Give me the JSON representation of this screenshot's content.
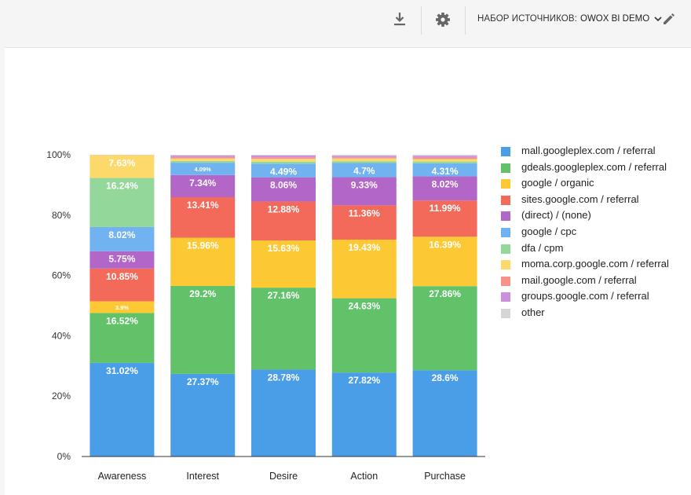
{
  "toolbar": {
    "download_icon": "download-icon",
    "settings_icon": "gear-icon",
    "source_set_label": "НАБОР ИСТОЧНИКОВ:",
    "source_set_value": "OWOX BI DEMO",
    "dropdown_icon": "chevron-down-icon",
    "edit_icon": "pencil-icon"
  },
  "chart_data": {
    "type": "bar",
    "stacked": true,
    "normalized_percent": true,
    "categories": [
      "Awareness",
      "Interest",
      "Desire",
      "Action",
      "Purchase"
    ],
    "y_ticks": [
      "0%",
      "20%",
      "40%",
      "60%",
      "80%",
      "100%"
    ],
    "ylim": [
      0,
      100
    ],
    "legend_position": "right",
    "series": [
      {
        "name": "mall.googleplex.com / referral",
        "color": "#4a9ee8",
        "values": [
          31.02,
          27.37,
          28.78,
          27.82,
          28.6
        ],
        "labels": [
          "31.02%",
          "27.37%",
          "28.78%",
          "27.82%",
          "28.6%"
        ]
      },
      {
        "name": "gdeals.googleplex.com / referral",
        "color": "#62c26a",
        "values": [
          16.52,
          29.2,
          27.16,
          24.63,
          27.86
        ],
        "labels": [
          "16.52%",
          "29.2%",
          "27.16%",
          "24.63%",
          "27.86%"
        ]
      },
      {
        "name": "google / organic",
        "color": "#fcc934",
        "values": [
          3.9,
          15.96,
          15.63,
          19.43,
          16.39
        ],
        "labels": [
          "3.9%",
          "15.96%",
          "15.63%",
          "19.43%",
          "16.39%"
        ]
      },
      {
        "name": "sites.google.com / referral",
        "color": "#f36a5a",
        "values": [
          10.85,
          13.41,
          12.88,
          11.36,
          11.99
        ],
        "labels": [
          "10.85%",
          "13.41%",
          "12.88%",
          "11.36%",
          "11.99%"
        ]
      },
      {
        "name": "(direct) / (none)",
        "color": "#b266c8",
        "values": [
          5.75,
          7.34,
          8.06,
          9.33,
          8.02
        ],
        "labels": [
          "5.75%",
          "7.34%",
          "8.06%",
          "9.33%",
          "8.02%"
        ]
      },
      {
        "name": "google / cpc",
        "color": "#71b3f0",
        "values": [
          8.02,
          4.09,
          4.49,
          4.7,
          4.31
        ],
        "labels": [
          "8.02%",
          "4.09%",
          "4.49%",
          "4.7%",
          "4.31%"
        ]
      },
      {
        "name": "dfa / cpm",
        "color": "#93d79a",
        "values": [
          16.24,
          0.6,
          0.7,
          0.6,
          0.6
        ],
        "labels": [
          "16.24%",
          "",
          "",
          "",
          ""
        ]
      },
      {
        "name": "moma.corp.google.com / referral",
        "color": "#fdd86b",
        "values": [
          7.63,
          0.8,
          0.9,
          0.9,
          0.8
        ],
        "labels": [
          "7.63%",
          "",
          "",
          "",
          ""
        ]
      },
      {
        "name": "mail.google.com / referral",
        "color": "#f7928a",
        "values": [
          0.05,
          0.5,
          0.5,
          0.4,
          0.5
        ],
        "labels": [
          "",
          "",
          "",
          "",
          ""
        ]
      },
      {
        "name": "groups.google.com / referral",
        "color": "#cc8fdc",
        "values": [
          0.01,
          0.5,
          0.6,
          0.5,
          0.6
        ],
        "labels": [
          "",
          "",
          "",
          "",
          ""
        ]
      },
      {
        "name": "other",
        "color": "#d6d6d6",
        "values": [
          0.01,
          0.23,
          0.26,
          0.33,
          0.33
        ],
        "labels": [
          "",
          "",
          "",
          "",
          ""
        ]
      }
    ]
  }
}
